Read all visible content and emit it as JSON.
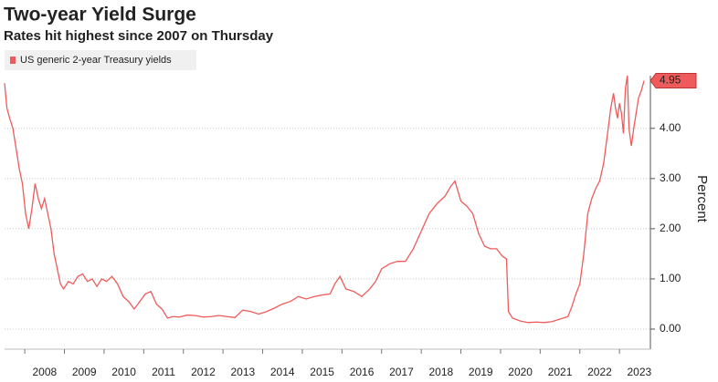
{
  "chart_data": {
    "type": "line",
    "title": "Two-year Yield Surge",
    "subtitle": "Rates hit highest since 2007 on Thursday",
    "y_axis_label": "Percent",
    "x": [
      2007.49,
      2007.55,
      2007.62,
      2007.7,
      2007.78,
      2007.86,
      2007.94,
      2008.02,
      2008.1,
      2008.18,
      2008.26,
      2008.34,
      2008.42,
      2008.5,
      2008.58,
      2008.66,
      2008.74,
      2008.82,
      2008.9,
      2008.98,
      2009.1,
      2009.22,
      2009.34,
      2009.46,
      2009.58,
      2009.7,
      2009.82,
      2009.94,
      2010.06,
      2010.2,
      2010.34,
      2010.48,
      2010.62,
      2010.76,
      2010.9,
      2011.04,
      2011.18,
      2011.32,
      2011.46,
      2011.6,
      2011.74,
      2011.9,
      2012.1,
      2012.3,
      2012.5,
      2012.7,
      2012.9,
      2013.1,
      2013.3,
      2013.5,
      2013.7,
      2013.9,
      2014.1,
      2014.3,
      2014.5,
      2014.7,
      2014.9,
      2015.1,
      2015.3,
      2015.5,
      2015.7,
      2015.82,
      2015.95,
      2016.1,
      2016.3,
      2016.5,
      2016.7,
      2016.85,
      2017.0,
      2017.2,
      2017.4,
      2017.6,
      2017.8,
      2018.0,
      2018.2,
      2018.4,
      2018.6,
      2018.75,
      2018.85,
      2019.0,
      2019.15,
      2019.3,
      2019.45,
      2019.6,
      2019.75,
      2019.9,
      2020.05,
      2020.15,
      2020.2,
      2020.3,
      2020.5,
      2020.7,
      2020.9,
      2021.1,
      2021.3,
      2021.5,
      2021.7,
      2021.8,
      2021.9,
      2022.0,
      2022.1,
      2022.2,
      2022.3,
      2022.4,
      2022.5,
      2022.6,
      2022.7,
      2022.78,
      2022.85,
      2022.9,
      2022.95,
      2023.0,
      2023.05,
      2023.1,
      2023.15,
      2023.2,
      2023.24,
      2023.3,
      2023.36,
      2023.42,
      2023.48,
      2023.55,
      2023.62
    ],
    "series": [
      {
        "name": "US generic 2-year Treasury yields",
        "color": "#ef5b5b",
        "values": [
          4.9,
          4.4,
          4.2,
          4.0,
          3.6,
          3.2,
          2.9,
          2.3,
          2.0,
          2.4,
          2.9,
          2.6,
          2.4,
          2.6,
          2.3,
          2.0,
          1.5,
          1.2,
          0.9,
          0.8,
          0.95,
          0.9,
          1.05,
          1.1,
          0.95,
          1.0,
          0.85,
          1.0,
          0.95,
          1.05,
          0.9,
          0.65,
          0.55,
          0.4,
          0.55,
          0.7,
          0.75,
          0.5,
          0.4,
          0.22,
          0.25,
          0.24,
          0.28,
          0.27,
          0.24,
          0.25,
          0.27,
          0.25,
          0.23,
          0.38,
          0.35,
          0.3,
          0.35,
          0.42,
          0.5,
          0.55,
          0.65,
          0.6,
          0.65,
          0.68,
          0.7,
          0.9,
          1.05,
          0.8,
          0.75,
          0.65,
          0.8,
          0.95,
          1.2,
          1.3,
          1.35,
          1.35,
          1.6,
          1.95,
          2.3,
          2.5,
          2.65,
          2.85,
          2.95,
          2.55,
          2.45,
          2.3,
          1.9,
          1.65,
          1.6,
          1.6,
          1.45,
          1.4,
          0.35,
          0.22,
          0.16,
          0.13,
          0.14,
          0.13,
          0.15,
          0.2,
          0.25,
          0.45,
          0.7,
          0.9,
          1.5,
          2.3,
          2.6,
          2.8,
          2.95,
          3.3,
          3.9,
          4.4,
          4.7,
          4.4,
          4.2,
          4.5,
          4.3,
          3.9,
          4.8,
          5.05,
          4.0,
          3.65,
          4.0,
          4.3,
          4.6,
          4.75,
          4.95
        ]
      }
    ],
    "xlim": [
      2007.49,
      2023.78
    ],
    "xticks": [
      2008,
      2009,
      2010,
      2011,
      2012,
      2013,
      2014,
      2015,
      2016,
      2017,
      2018,
      2019,
      2020,
      2021,
      2022,
      2023
    ],
    "ylim": [
      -0.4,
      5.05
    ],
    "yticks": [
      {
        "value": 0,
        "label": "0.00"
      },
      {
        "value": 1,
        "label": "1.00"
      },
      {
        "value": 2,
        "label": "2.00"
      },
      {
        "value": 3,
        "label": "3.00"
      },
      {
        "value": 4,
        "label": "4.00"
      }
    ],
    "grid": true
  }
}
